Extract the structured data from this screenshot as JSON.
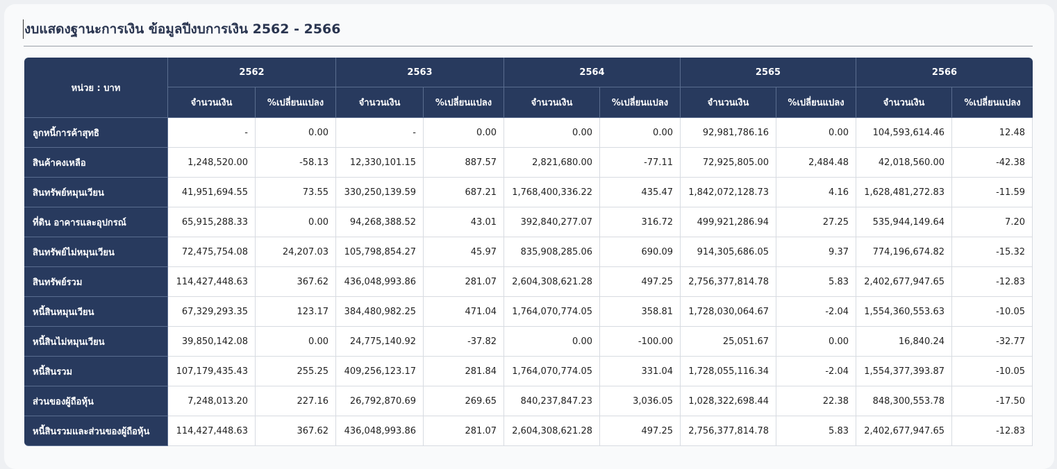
{
  "page": {
    "title": "งบแสดงฐานะการเงิน ข้อมูลปีงบการเงิน 2562 - 2566"
  },
  "table": {
    "unit_label": "หน่วย : บาท",
    "years": [
      "2562",
      "2563",
      "2564",
      "2565",
      "2566"
    ],
    "sub_headers": [
      "จำนวนเงิน",
      "%เปลี่ยนแปลง"
    ],
    "rows": [
      {
        "label": "ลูกหนี้การค้าสุทธิ",
        "values": [
          "-",
          "0.00",
          "-",
          "0.00",
          "0.00",
          "0.00",
          "92,981,786.16",
          "0.00",
          "104,593,614.46",
          "12.48"
        ]
      },
      {
        "label": "สินค้าคงเหลือ",
        "values": [
          "1,248,520.00",
          "-58.13",
          "12,330,101.15",
          "887.57",
          "2,821,680.00",
          "-77.11",
          "72,925,805.00",
          "2,484.48",
          "42,018,560.00",
          "-42.38"
        ]
      },
      {
        "label": "สินทรัพย์หมุนเวียน",
        "values": [
          "41,951,694.55",
          "73.55",
          "330,250,139.59",
          "687.21",
          "1,768,400,336.22",
          "435.47",
          "1,842,072,128.73",
          "4.16",
          "1,628,481,272.83",
          "-11.59"
        ]
      },
      {
        "label": "ที่ดิน อาคารและอุปกรณ์",
        "values": [
          "65,915,288.33",
          "0.00",
          "94,268,388.52",
          "43.01",
          "392,840,277.07",
          "316.72",
          "499,921,286.94",
          "27.25",
          "535,944,149.64",
          "7.20"
        ]
      },
      {
        "label": "สินทรัพย์ไม่หมุนเวียน",
        "values": [
          "72,475,754.08",
          "24,207.03",
          "105,798,854.27",
          "45.97",
          "835,908,285.06",
          "690.09",
          "914,305,686.05",
          "9.37",
          "774,196,674.82",
          "-15.32"
        ]
      },
      {
        "label": "สินทรัพย์รวม",
        "values": [
          "114,427,448.63",
          "367.62",
          "436,048,993.86",
          "281.07",
          "2,604,308,621.28",
          "497.25",
          "2,756,377,814.78",
          "5.83",
          "2,402,677,947.65",
          "-12.83"
        ]
      },
      {
        "label": "หนี้สินหมุนเวียน",
        "values": [
          "67,329,293.35",
          "123.17",
          "384,480,982.25",
          "471.04",
          "1,764,070,774.05",
          "358.81",
          "1,728,030,064.67",
          "-2.04",
          "1,554,360,553.63",
          "-10.05"
        ]
      },
      {
        "label": "หนี้สินไม่หมุนเวียน",
        "values": [
          "39,850,142.08",
          "0.00",
          "24,775,140.92",
          "-37.82",
          "0.00",
          "-100.00",
          "25,051.67",
          "0.00",
          "16,840.24",
          "-32.77"
        ]
      },
      {
        "label": "หนี้สินรวม",
        "values": [
          "107,179,435.43",
          "255.25",
          "409,256,123.17",
          "281.84",
          "1,764,070,774.05",
          "331.04",
          "1,728,055,116.34",
          "-2.04",
          "1,554,377,393.87",
          "-10.05"
        ]
      },
      {
        "label": "ส่วนของผู้ถือหุ้น",
        "values": [
          "7,248,013.20",
          "227.16",
          "26,792,870.69",
          "269.65",
          "840,237,847.23",
          "3,036.05",
          "1,028,322,698.44",
          "22.38",
          "848,300,553.78",
          "-17.50"
        ]
      },
      {
        "label": "หนี้สินรวมและส่วนของผู้ถือหุ้น",
        "values": [
          "114,427,448.63",
          "367.62",
          "436,048,993.86",
          "281.07",
          "2,604,308,621.28",
          "497.25",
          "2,756,377,814.78",
          "5.83",
          "2,402,677,947.65",
          "-12.83"
        ]
      }
    ]
  },
  "colors": {
    "header_bg": "#283a5e",
    "header_text": "#ffffff",
    "cell_bg": "#ffffff",
    "grid": "#d7dbe1"
  }
}
